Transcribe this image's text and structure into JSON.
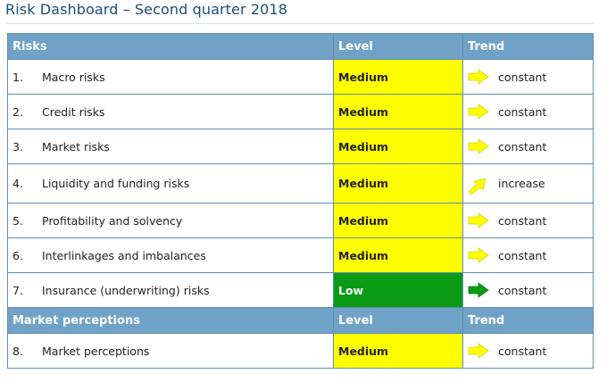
{
  "page": {
    "title": "Risk Dashboard – Second quarter 2018"
  },
  "colors": {
    "header_bg": "#6fa2c6",
    "medium": "#ffff00",
    "low": "#0b9a14",
    "arrow_medium": "#ffff00",
    "arrow_low": "#0b9a14"
  },
  "section_risks": {
    "header": {
      "name": "Risks",
      "level": "Level",
      "trend": "Trend"
    },
    "rows": [
      {
        "num": "1.",
        "name": "Macro risks",
        "level": "Medium",
        "trend": "constant",
        "trend_icon": "arrow-right-icon"
      },
      {
        "num": "2.",
        "name": "Credit risks",
        "level": "Medium",
        "trend": "constant",
        "trend_icon": "arrow-right-icon"
      },
      {
        "num": "3.",
        "name": "Market risks",
        "level": "Medium",
        "trend": "constant",
        "trend_icon": "arrow-right-icon"
      },
      {
        "num": "4.",
        "name": "Liquidity and funding risks",
        "level": "Medium",
        "trend": "increase",
        "trend_icon": "arrow-up-right-icon"
      },
      {
        "num": "5.",
        "name": "Profitability and solvency",
        "level": "Medium",
        "trend": "constant",
        "trend_icon": "arrow-right-icon"
      },
      {
        "num": "6.",
        "name": "Interlinkages and imbalances",
        "level": "Medium",
        "trend": "constant",
        "trend_icon": "arrow-right-icon"
      },
      {
        "num": "7.",
        "name": "Insurance (underwriting) risks",
        "level": "Low",
        "trend": "constant",
        "trend_icon": "arrow-right-icon"
      }
    ]
  },
  "section_market": {
    "header": {
      "name": "Market perceptions",
      "level": "Level",
      "trend": "Trend"
    },
    "rows": [
      {
        "num": "8.",
        "name": "Market perceptions",
        "level": "Medium",
        "trend": "constant",
        "trend_icon": "arrow-right-icon"
      }
    ]
  }
}
